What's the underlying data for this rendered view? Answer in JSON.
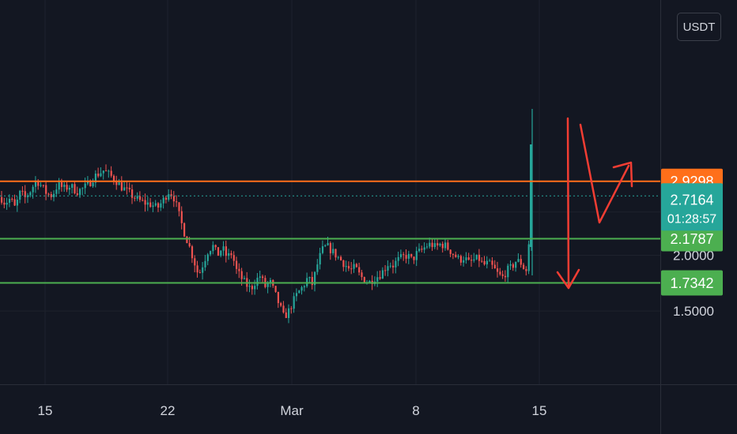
{
  "currency_button": "USDT",
  "colors": {
    "background": "#131722",
    "up": "#26a69a",
    "down": "#ef5350",
    "resistance": "#ff6f1a",
    "support": "#4caf50",
    "current": "#26a69a",
    "arrows": "#f23d33"
  },
  "chart_data": {
    "type": "candlestick",
    "quote_currency": "USDT",
    "x_axis": {
      "ticks": [
        "15",
        "22",
        "Mar",
        "8",
        "15"
      ]
    },
    "y_axis": {
      "scale": "log",
      "ticks": [
        "2.0000",
        "1.5000"
      ],
      "range": [
        1.22,
        3.3
      ]
    },
    "levels": [
      {
        "name": "resistance",
        "value": "2.9298"
      },
      {
        "name": "support-upper",
        "value": "2.1787"
      },
      {
        "name": "support-lower",
        "value": "1.7342"
      }
    ],
    "last_price": {
      "value": "2.7164",
      "countdown": "01:28:57"
    },
    "series": [
      {
        "name": "price",
        "anchors": [
          [
            0,
            2.7
          ],
          [
            5,
            2.62
          ],
          [
            12,
            2.68
          ],
          [
            18,
            2.55
          ],
          [
            25,
            2.78
          ],
          [
            30,
            2.68
          ],
          [
            38,
            2.8
          ],
          [
            45,
            2.95
          ],
          [
            52,
            2.85
          ],
          [
            58,
            2.75
          ],
          [
            65,
            2.72
          ],
          [
            72,
            2.88
          ],
          [
            80,
            2.82
          ],
          [
            88,
            2.86
          ],
          [
            96,
            2.78
          ],
          [
            104,
            2.82
          ],
          [
            112,
            2.9
          ],
          [
            118,
            3.0
          ],
          [
            124,
            3.05
          ],
          [
            130,
            3.1
          ],
          [
            138,
            3.02
          ],
          [
            145,
            2.95
          ],
          [
            152,
            2.85
          ],
          [
            160,
            2.78
          ],
          [
            168,
            2.7
          ],
          [
            175,
            2.65
          ],
          [
            182,
            2.62
          ],
          [
            190,
            2.6
          ],
          [
            198,
            2.55
          ],
          [
            205,
            2.65
          ],
          [
            212,
            2.78
          ],
          [
            218,
            2.72
          ],
          [
            223,
            2.55
          ],
          [
            227,
            2.4
          ],
          [
            232,
            2.25
          ],
          [
            238,
            2.1
          ],
          [
            244,
            1.95
          ],
          [
            250,
            1.8
          ],
          [
            256,
            1.92
          ],
          [
            262,
            2.05
          ],
          [
            268,
            2.1
          ],
          [
            274,
            2.0
          ],
          [
            280,
            2.08
          ],
          [
            286,
            1.98
          ],
          [
            292,
            2.02
          ],
          [
            298,
            1.85
          ],
          [
            304,
            1.78
          ],
          [
            310,
            1.72
          ],
          [
            316,
            1.68
          ],
          [
            322,
            1.75
          ],
          [
            328,
            1.8
          ],
          [
            334,
            1.7
          ],
          [
            340,
            1.75
          ],
          [
            346,
            1.65
          ],
          [
            352,
            1.55
          ],
          [
            358,
            1.45
          ],
          [
            364,
            1.5
          ],
          [
            370,
            1.58
          ],
          [
            376,
            1.65
          ],
          [
            382,
            1.7
          ],
          [
            388,
            1.78
          ],
          [
            394,
            1.72
          ],
          [
            400,
            1.9
          ],
          [
            406,
            2.05
          ],
          [
            412,
            2.1
          ],
          [
            418,
            2.05
          ],
          [
            424,
            2.0
          ],
          [
            430,
            1.95
          ],
          [
            436,
            1.9
          ],
          [
            442,
            1.85
          ],
          [
            448,
            1.88
          ],
          [
            454,
            1.8
          ],
          [
            460,
            1.76
          ],
          [
            466,
            1.74
          ],
          [
            472,
            1.78
          ],
          [
            478,
            1.8
          ],
          [
            484,
            1.85
          ],
          [
            490,
            1.92
          ],
          [
            496,
            1.9
          ],
          [
            502,
            1.95
          ],
          [
            508,
            1.98
          ],
          [
            514,
            2.0
          ],
          [
            520,
            1.95
          ],
          [
            526,
            2.02
          ],
          [
            532,
            2.05
          ],
          [
            538,
            2.1
          ],
          [
            544,
            2.12
          ],
          [
            550,
            2.08
          ],
          [
            556,
            2.12
          ],
          [
            562,
            2.1
          ],
          [
            568,
            2.05
          ],
          [
            574,
            2.0
          ],
          [
            580,
            1.95
          ],
          [
            586,
            1.98
          ],
          [
            592,
            1.92
          ],
          [
            598,
            1.95
          ],
          [
            604,
            1.97
          ],
          [
            610,
            1.9
          ],
          [
            616,
            1.92
          ],
          [
            622,
            1.88
          ],
          [
            628,
            1.82
          ],
          [
            634,
            1.78
          ],
          [
            640,
            1.85
          ],
          [
            646,
            1.88
          ],
          [
            652,
            1.95
          ],
          [
            658,
            1.92
          ],
          [
            663,
            1.85
          ],
          [
            666,
            1.86
          ],
          [
            668,
            2.18
          ],
          [
            671,
            2.55
          ],
          [
            674,
            2.72
          ]
        ]
      }
    ]
  }
}
